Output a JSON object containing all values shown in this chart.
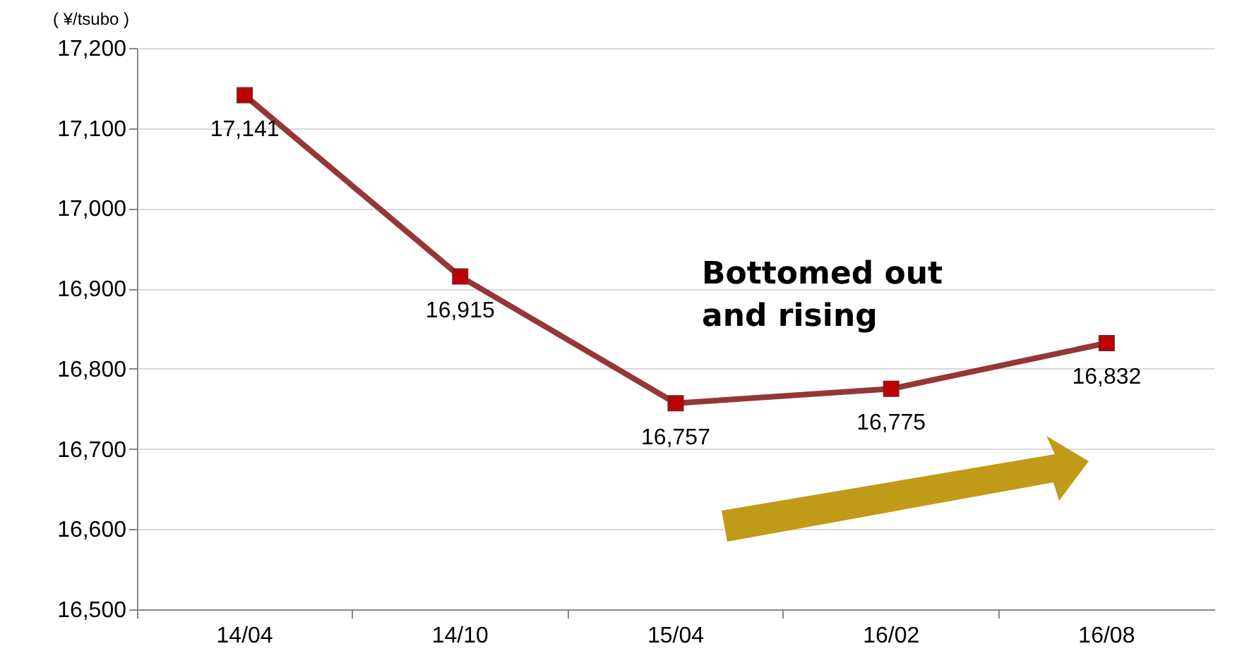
{
  "chart_data": {
    "type": "line",
    "ylabel": "( ¥/tsubo )",
    "categories": [
      "14/04",
      "14/10",
      "15/04",
      "16/02",
      "16/08"
    ],
    "series": [
      {
        "color": "#953735",
        "values": [
          17141,
          16915,
          16757,
          16775,
          16832
        ],
        "value_labels": [
          "17,141",
          "16,915",
          "16,757",
          "16,775",
          "16,832"
        ]
      }
    ],
    "ylim": [
      16500,
      17200
    ],
    "yticks": [
      {
        "value": 16500,
        "label": "16,500"
      },
      {
        "value": 16600,
        "label": "16,600"
      },
      {
        "value": 16700,
        "label": "16,700"
      },
      {
        "value": 16800,
        "label": "16,800"
      },
      {
        "value": 16900,
        "label": "16,900"
      },
      {
        "value": 17000,
        "label": "17,000"
      },
      {
        "value": 17100,
        "label": "17,100"
      },
      {
        "value": 17200,
        "label": "17,200"
      }
    ],
    "grid": "y",
    "marker": "square",
    "annotations": [
      "Bottomed out\nand rising"
    ]
  }
}
